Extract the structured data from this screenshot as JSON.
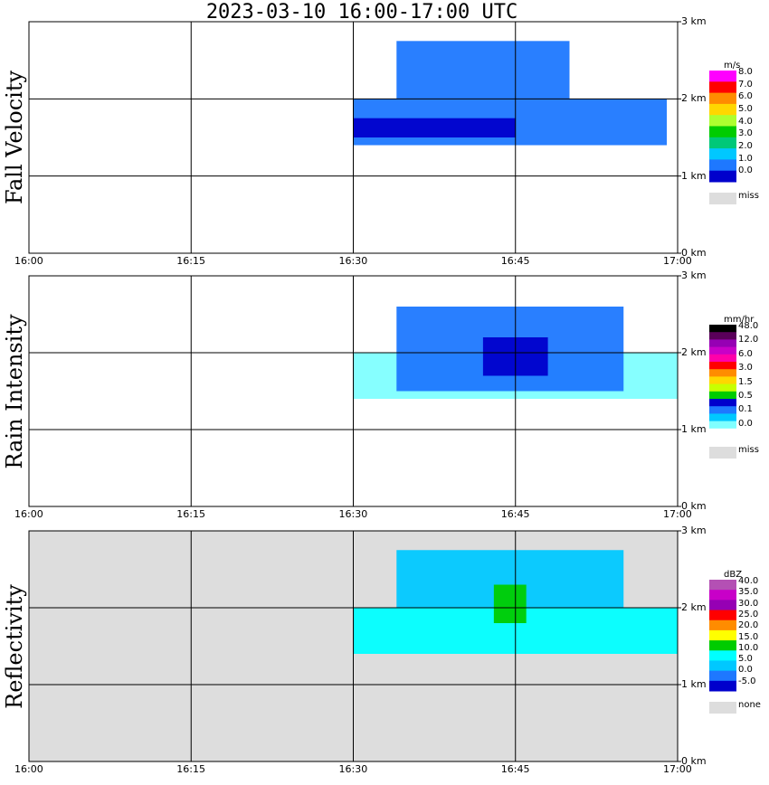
{
  "title": "2023-03-10   16:00-17:00 UTC",
  "chart_data": [
    {
      "type": "heatmap",
      "panel": "Fall Velocity",
      "unit": "m/s",
      "xlabel": "",
      "x_ticks": [
        "16:00",
        "16:15",
        "16:30",
        "16:45",
        "17:00"
      ],
      "xlim": [
        "16:00",
        "17:00"
      ],
      "y_ticks": [
        "3 km",
        "2 km",
        "1 km",
        "0 km"
      ],
      "ylim": [
        0,
        3
      ],
      "grid": true,
      "background": "#ffffff",
      "legend": {
        "labels": [
          "8.0",
          "7.0",
          "6.0",
          "5.0",
          "4.0",
          "3.0",
          "2.0",
          "1.0",
          "0.0"
        ],
        "colors": [
          "#ff00ff",
          "#ff0000",
          "#ff8c00",
          "#ffd700",
          "#adff2f",
          "#00cc00",
          "#00c878",
          "#00c8ff",
          "#1e78ff",
          "#0000cc"
        ],
        "miss_label": "miss",
        "miss_color": "#dddddd"
      },
      "layers": [
        {
          "start": "16:30",
          "end": "16:59",
          "top": 2.0,
          "bottom": 1.4,
          "color": "#1e78ff"
        },
        {
          "start": "16:34",
          "end": "16:50",
          "top": 2.75,
          "bottom": 2.0,
          "color": "#1e78ff"
        },
        {
          "start": "16:30",
          "end": "16:45",
          "top": 1.75,
          "bottom": 1.5,
          "color": "#0000cc"
        }
      ]
    },
    {
      "type": "heatmap",
      "panel": "Rain Intensity",
      "unit": "mm/hr",
      "xlabel": "",
      "x_ticks": [
        "16:00",
        "16:15",
        "16:30",
        "16:45",
        "17:00"
      ],
      "xlim": [
        "16:00",
        "17:00"
      ],
      "y_ticks": [
        "3 km",
        "2 km",
        "1 km",
        "0 km"
      ],
      "ylim": [
        0,
        3
      ],
      "grid": true,
      "background": "#ffffff",
      "legend": {
        "labels": [
          "48.0",
          "12.0",
          "6.0",
          "3.0",
          "1.5",
          "0.5",
          "0.1",
          "0.0"
        ],
        "colors": [
          "#000000",
          "#5a005a",
          "#9600b4",
          "#c800c8",
          "#ff00aa",
          "#ff0000",
          "#ff8c00",
          "#ffd700",
          "#c8ff00",
          "#00cc00",
          "#0000cc",
          "#1e78ff",
          "#00c8ff",
          "#80ffff",
          "#ffffff"
        ],
        "miss_label": "miss",
        "miss_color": "#dddddd"
      },
      "layers": [
        {
          "start": "16:30",
          "end": "17:00",
          "top": 2.0,
          "bottom": 1.4,
          "color": "#80ffff"
        },
        {
          "start": "16:34",
          "end": "16:55",
          "top": 2.6,
          "bottom": 1.5,
          "color": "#1e78ff"
        },
        {
          "start": "16:42",
          "end": "16:48",
          "top": 2.2,
          "bottom": 1.7,
          "color": "#0000cc"
        }
      ]
    },
    {
      "type": "heatmap",
      "panel": "Reflectivity",
      "unit": "dBZ",
      "xlabel": "",
      "x_ticks": [
        "16:00",
        "16:15",
        "16:30",
        "16:45",
        "17:00"
      ],
      "xlim": [
        "16:00",
        "17:00"
      ],
      "y_ticks": [
        "3 km",
        "2 km",
        "1 km",
        "0 km"
      ],
      "ylim": [
        0,
        3
      ],
      "grid": true,
      "background": "#dddddd",
      "legend": {
        "labels": [
          "40.0",
          "35.0",
          "30.0",
          "25.0",
          "20.0",
          "15.0",
          "10.0",
          "5.0",
          "0.0",
          "-5.0"
        ],
        "colors": [
          "#b450b4",
          "#c800c8",
          "#9600b4",
          "#ff0000",
          "#ff8c00",
          "#ffff00",
          "#00cc00",
          "#00ffff",
          "#00c8ff",
          "#1e78ff",
          "#0000cc"
        ],
        "miss_label": "none",
        "miss_color": "#dddddd"
      },
      "layers": [
        {
          "start": "16:30",
          "end": "17:00",
          "top": 2.0,
          "bottom": 1.4,
          "color": "#00ffff"
        },
        {
          "start": "16:34",
          "end": "16:55",
          "top": 2.75,
          "bottom": 2.0,
          "color": "#00c8ff"
        },
        {
          "start": "16:43",
          "end": "16:46",
          "top": 2.3,
          "bottom": 1.8,
          "color": "#00cc00"
        }
      ]
    }
  ]
}
